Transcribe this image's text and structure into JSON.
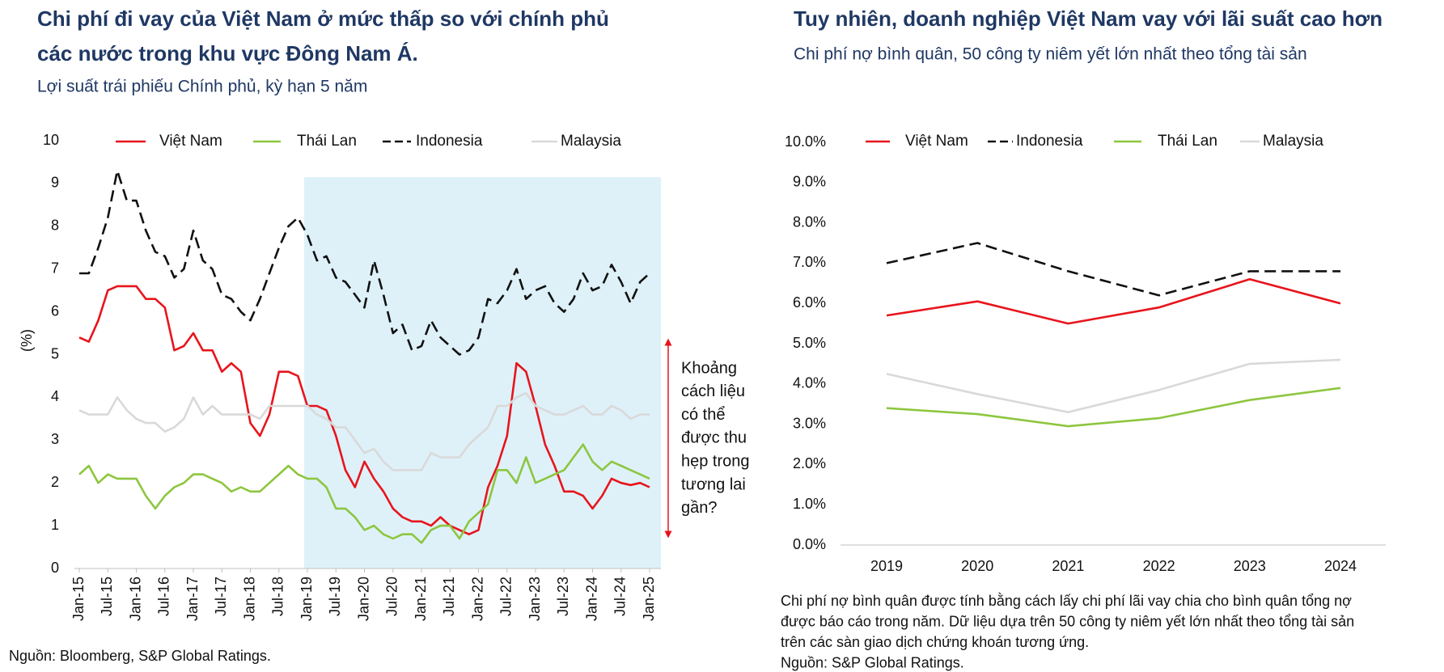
{
  "chart_data": [
    {
      "type": "line",
      "title": [
        "Chi phí đi vay của Việt Nam ở mức thấp so với chính phủ",
        "các nước trong khu vực Đông Nam Á."
      ],
      "subtitle": "Lợi suất trái phiếu Chính phủ, kỳ hạn 5 năm",
      "y_label": "(%)",
      "categories": [
        "Jan-15",
        null,
        null,
        "Jul-15",
        null,
        null,
        "Jan-16",
        null,
        null,
        "Jul-16",
        null,
        null,
        "Jan-17",
        null,
        null,
        "Jul-17",
        null,
        null,
        "Jan-18",
        null,
        null,
        "Jul-18",
        null,
        null,
        "Jan-19",
        null,
        null,
        "Jul-19",
        null,
        null,
        "Jan-20",
        null,
        null,
        "Jul-20",
        null,
        null,
        "Jan-21",
        null,
        null,
        "Jul-21",
        null,
        null,
        "Jan-22",
        null,
        null,
        "Jul-22",
        null,
        null,
        "Jan-23",
        null,
        null,
        "Jul-23",
        null,
        null,
        "Jan-24",
        null,
        null,
        "Jul-24",
        null,
        null,
        "Jan-25"
      ],
      "series": [
        {
          "name": "Việt Nam",
          "color": "#e8141c",
          "dashed": false,
          "values": [
            5.4,
            5.3,
            5.8,
            6.5,
            6.6,
            6.6,
            6.6,
            6.3,
            6.3,
            6.1,
            5.1,
            5.2,
            5.5,
            5.1,
            5.1,
            4.6,
            4.8,
            4.6,
            3.4,
            3.1,
            3.6,
            4.6,
            4.6,
            4.5,
            3.8,
            3.8,
            3.7,
            3.1,
            2.3,
            1.9,
            2.5,
            2.1,
            1.8,
            1.4,
            1.2,
            1.1,
            1.1,
            1.0,
            1.2,
            1.0,
            0.9,
            0.8,
            0.9,
            1.9,
            2.4,
            3.1,
            4.8,
            4.6,
            3.8,
            2.9,
            2.4,
            1.8,
            1.8,
            1.7,
            1.4,
            1.7,
            2.1,
            2.0,
            1.95,
            2.0,
            1.9
          ]
        },
        {
          "name": "Thái Lan",
          "color": "#8dc63f",
          "dashed": false,
          "values": [
            2.2,
            2.4,
            2.0,
            2.2,
            2.1,
            2.1,
            2.1,
            1.7,
            1.4,
            1.7,
            1.9,
            2.0,
            2.2,
            2.2,
            2.1,
            2.0,
            1.8,
            1.9,
            1.8,
            1.8,
            2.0,
            2.2,
            2.4,
            2.2,
            2.1,
            2.1,
            1.9,
            1.4,
            1.4,
            1.2,
            0.9,
            1.0,
            0.8,
            0.7,
            0.8,
            0.8,
            0.6,
            0.9,
            1.0,
            1.0,
            0.7,
            1.1,
            1.3,
            1.5,
            2.3,
            2.3,
            2.0,
            2.6,
            2.0,
            2.1,
            2.2,
            2.3,
            2.6,
            2.9,
            2.5,
            2.3,
            2.5,
            2.4,
            2.3,
            2.2,
            2.1
          ]
        },
        {
          "name": "Indonesia",
          "color": "#111111",
          "dashed": true,
          "values": [
            6.9,
            6.9,
            7.5,
            8.2,
            9.3,
            8.6,
            8.6,
            7.9,
            7.4,
            7.3,
            6.8,
            7.0,
            7.9,
            7.2,
            7.0,
            6.4,
            6.3,
            6.0,
            5.8,
            6.3,
            6.9,
            7.5,
            8.0,
            8.2,
            7.8,
            7.2,
            7.3,
            6.8,
            6.7,
            6.4,
            6.1,
            7.2,
            6.4,
            5.5,
            5.7,
            5.1,
            5.2,
            5.8,
            5.4,
            5.2,
            5.0,
            5.1,
            5.4,
            6.3,
            6.2,
            6.5,
            7.0,
            6.3,
            6.5,
            6.6,
            6.2,
            6.0,
            6.3,
            6.9,
            6.5,
            6.6,
            7.1,
            6.7,
            6.2,
            6.7,
            6.9
          ]
        },
        {
          "name": "Malaysia",
          "color": "#d9d9d9",
          "dashed": false,
          "values": [
            3.7,
            3.6,
            3.6,
            3.6,
            4.0,
            3.7,
            3.5,
            3.4,
            3.4,
            3.2,
            3.3,
            3.5,
            4.0,
            3.6,
            3.8,
            3.6,
            3.6,
            3.6,
            3.6,
            3.5,
            3.8,
            3.8,
            3.8,
            3.8,
            3.8,
            3.6,
            3.5,
            3.3,
            3.3,
            3.0,
            2.7,
            2.8,
            2.5,
            2.3,
            2.3,
            2.3,
            2.3,
            2.7,
            2.6,
            2.6,
            2.6,
            2.9,
            3.1,
            3.3,
            3.8,
            3.8,
            4.0,
            4.1,
            3.8,
            3.7,
            3.6,
            3.6,
            3.7,
            3.8,
            3.6,
            3.6,
            3.8,
            3.7,
            3.5,
            3.6,
            3.6
          ]
        }
      ],
      "ylim": [
        0,
        10
      ],
      "yticks": [
        0,
        1,
        2,
        3,
        4,
        5,
        6,
        7,
        8,
        9,
        10
      ],
      "annotation": [
        "Khoảng",
        "cách liệu",
        "có thể",
        "được thu",
        "hẹp trong",
        "tương lai",
        "gần?"
      ],
      "source": "Nguồn: Bloomberg, S&P Global Ratings."
    },
    {
      "type": "line",
      "title": [
        "Tuy nhiên, doanh nghiệp Việt Nam vay với lãi suất cao hơn"
      ],
      "subtitle": "Chi phí nợ bình quân, 50 công ty niêm yết lớn nhất theo tổng tài sản",
      "categories": [
        "2019",
        "2020",
        "2021",
        "2022",
        "2023",
        "2024"
      ],
      "series": [
        {
          "name": "Việt Nam",
          "color": "#e8141c",
          "dashed": false,
          "values": [
            5.7,
            6.05,
            5.5,
            5.9,
            6.6,
            6.0
          ]
        },
        {
          "name": "Indonesia",
          "color": "#111111",
          "dashed": true,
          "values": [
            7.0,
            7.5,
            6.8,
            6.2,
            6.8,
            6.8
          ]
        },
        {
          "name": "Thái Lan",
          "color": "#8dc63f",
          "dashed": false,
          "values": [
            3.4,
            3.25,
            2.95,
            3.15,
            3.6,
            3.9
          ]
        },
        {
          "name": "Malaysia",
          "color": "#d9d9d9",
          "dashed": false,
          "values": [
            4.25,
            3.75,
            3.3,
            3.85,
            4.5,
            4.6
          ]
        }
      ],
      "ylim": [
        0,
        10
      ],
      "yticks": [
        {
          "value": 0,
          "label": "0.0%"
        },
        {
          "value": 1,
          "label": "1.0%"
        },
        {
          "value": 2,
          "label": "2.0%"
        },
        {
          "value": 3,
          "label": "3.0%"
        },
        {
          "value": 4,
          "label": "4.0%"
        },
        {
          "value": 5,
          "label": "5.0%"
        },
        {
          "value": 6,
          "label": "6.0%"
        },
        {
          "value": 7,
          "label": "7.0%"
        },
        {
          "value": 8,
          "label": "8.0%"
        },
        {
          "value": 9,
          "label": "9.0%"
        },
        {
          "value": 10,
          "label": "10.0%"
        }
      ],
      "notes": [
        "Chi phí nợ bình quân được tính bằng cách lấy chi phí lãi vay chia cho bình quân tổng nợ",
        "được báo cáo trong năm. Dữ liệu dựa trên 50 công ty niêm yết lớn nhất theo tổng tài sản",
        "trên các sàn giao dịch chứng khoán tương ứng.",
        "Nguồn:  S&P Global Ratings."
      ]
    }
  ]
}
